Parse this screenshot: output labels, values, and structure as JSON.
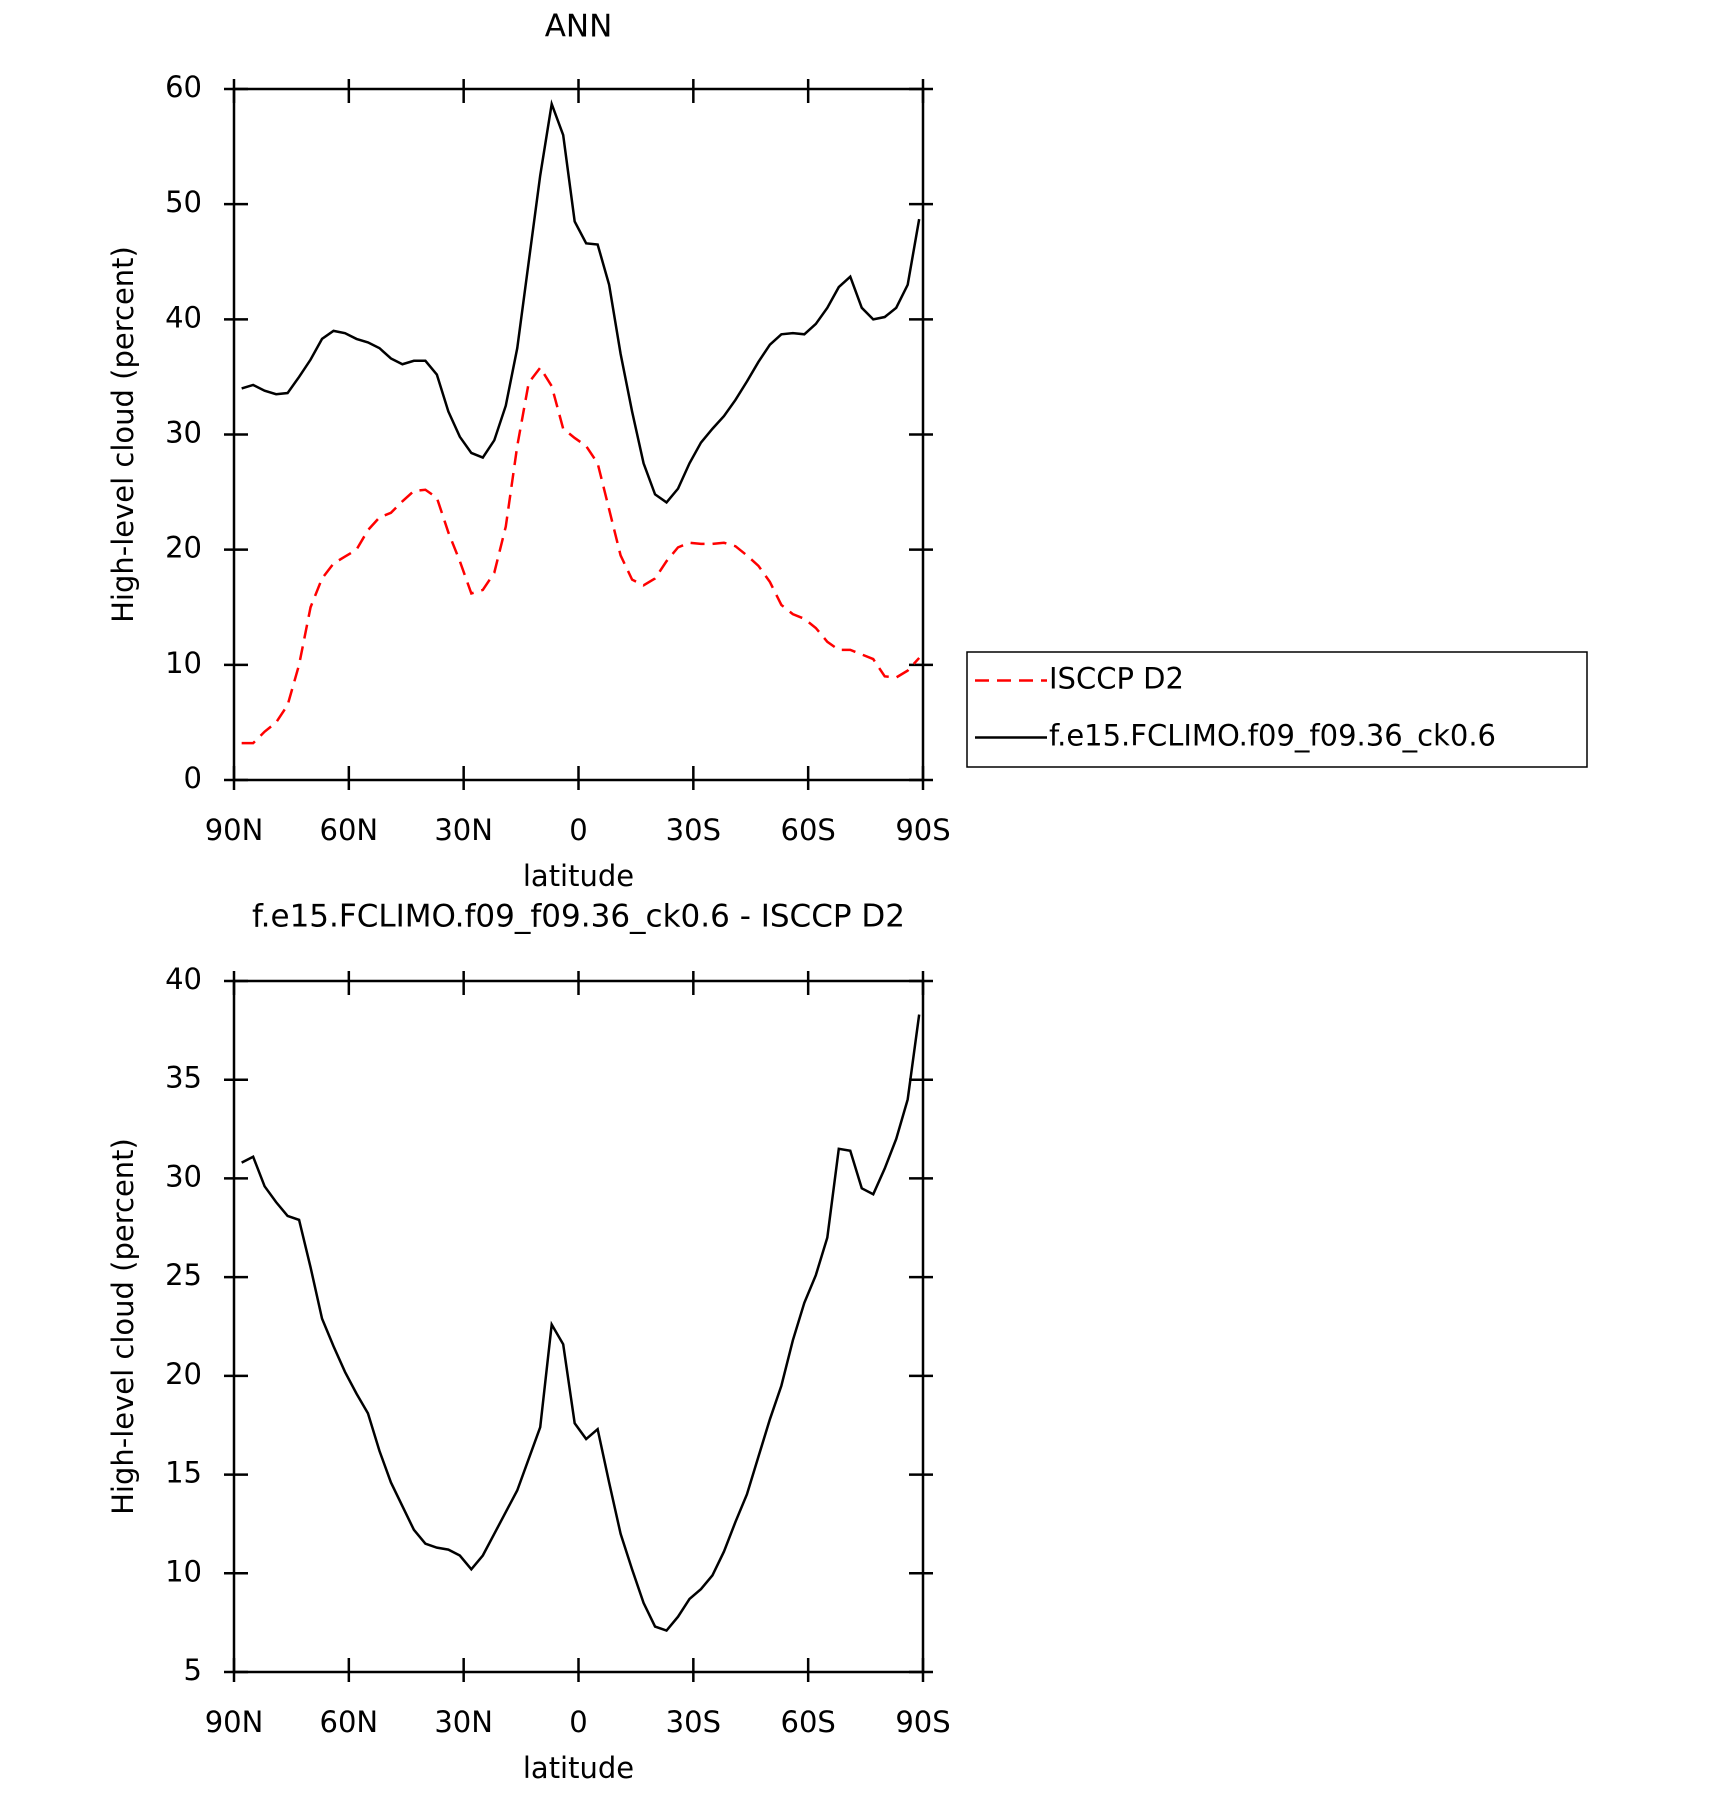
{
  "chart_data": [
    {
      "type": "line",
      "title": "ANN",
      "x_label": "latitude",
      "y_label": "High-level cloud (percent)",
      "x": [
        88,
        85,
        82,
        79,
        76,
        73,
        70,
        67,
        64,
        61,
        58,
        55,
        52,
        49,
        46,
        43,
        40,
        37,
        34,
        31,
        28,
        25,
        22,
        19,
        16,
        13,
        10,
        7,
        4,
        1,
        -2,
        -5,
        -8,
        -11,
        -14,
        -17,
        -20,
        -23,
        -26,
        -29,
        -32,
        -35,
        -38,
        -41,
        -44,
        -47,
        -50,
        -53,
        -56,
        -59,
        -62,
        -65,
        -68,
        -71,
        -74,
        -77,
        -80,
        -83,
        -86,
        -89
      ],
      "series": [
        {
          "name": "ISCCP D2",
          "color": "#ff0000",
          "dashed": true,
          "values": [
            3.2,
            3.2,
            4.2,
            5,
            6.5,
            10,
            15,
            17.5,
            18.8,
            19.4,
            20,
            21.7,
            22.8,
            23.2,
            24.2,
            25.1,
            25.2,
            24.5,
            21.5,
            19,
            16.2,
            16.5,
            18,
            22,
            29,
            34.5,
            35.8,
            34.2,
            30.5,
            29.7,
            29,
            27.5,
            23.5,
            19.5,
            17.4,
            16.9,
            17.5,
            19,
            20.2,
            20.6,
            20.5,
            20.5,
            20.6,
            20.3,
            19.5,
            18.6,
            17.2,
            15.2,
            14.4,
            14,
            13.2,
            12,
            11.3,
            11.3,
            10.9,
            10.5,
            9,
            8.9,
            9.5,
            10.6
          ]
        },
        {
          "name": "f.e15.FCLIMO.f09_f09.36_ck0.6",
          "color": "#000000",
          "dashed": false,
          "values": [
            34,
            34.3,
            33.8,
            33.5,
            33.6,
            35,
            36.5,
            38.3,
            39,
            38.8,
            38.3,
            38,
            37.5,
            36.6,
            36.1,
            36.4,
            36.4,
            35.2,
            32,
            29.8,
            28.4,
            28,
            29.5,
            32.5,
            37.5,
            45,
            52.5,
            58.7,
            56,
            48.5,
            46.6,
            46.5,
            43,
            37,
            32,
            27.5,
            24.8,
            24.1,
            25.3,
            27.5,
            29.3,
            30.5,
            31.6,
            33,
            34.6,
            36.3,
            37.8,
            38.7,
            38.8,
            38.7,
            39.6,
            41,
            42.8,
            43.7,
            41,
            40,
            40.2,
            41,
            43,
            48.7
          ]
        }
      ],
      "xlim": [
        90,
        -90
      ],
      "xticks": [
        {
          "value": 90,
          "label": "90N"
        },
        {
          "value": 60,
          "label": "60N"
        },
        {
          "value": 30,
          "label": "30N"
        },
        0,
        {
          "value": -30,
          "label": "30S"
        },
        {
          "value": -60,
          "label": "60S"
        },
        {
          "value": -90,
          "label": "90S"
        }
      ],
      "ylim": [
        0,
        60
      ],
      "yticks": [
        0,
        10,
        20,
        30,
        40,
        50,
        60
      ],
      "legend": "right"
    },
    {
      "type": "line",
      "title": "f.e15.FCLIMO.f09_f09.36_ck0.6 - ISCCP D2",
      "x_label": "latitude",
      "y_label": "High-level cloud (percent)",
      "x": [
        88,
        85,
        82,
        79,
        76,
        73,
        70,
        67,
        64,
        61,
        58,
        55,
        52,
        49,
        46,
        43,
        40,
        37,
        34,
        31,
        28,
        25,
        22,
        19,
        16,
        13,
        10,
        7,
        4,
        1,
        -2,
        -5,
        -8,
        -11,
        -14,
        -17,
        -20,
        -23,
        -26,
        -29,
        -32,
        -35,
        -38,
        -41,
        -44,
        -47,
        -50,
        -53,
        -56,
        -59,
        -62,
        -65,
        -68,
        -71,
        -74,
        -77,
        -80,
        -83,
        -86,
        -89
      ],
      "series": [
        {
          "color": "#000000",
          "dashed": false,
          "values": [
            30.8,
            31.1,
            29.6,
            28.8,
            28.1,
            27.9,
            25.5,
            22.9,
            21.5,
            20.2,
            19.1,
            18.1,
            16.2,
            14.6,
            13.4,
            12.2,
            11.5,
            11.3,
            11.2,
            10.9,
            10.2,
            10.9,
            12,
            13.1,
            14.2,
            15.8,
            17.4,
            22.6,
            21.6,
            17.6,
            16.8,
            17.3,
            14.6,
            12,
            10.2,
            8.5,
            7.3,
            7.1,
            7.8,
            8.7,
            9.2,
            9.9,
            11.1,
            12.6,
            14,
            15.9,
            17.8,
            19.5,
            21.8,
            23.7,
            25.1,
            27,
            31.5,
            31.4,
            29.5,
            29.2,
            30.5,
            32,
            34,
            38.3
          ]
        }
      ],
      "xlim": [
        90,
        -90
      ],
      "xticks": [
        {
          "value": 90,
          "label": "90N"
        },
        {
          "value": 60,
          "label": "60N"
        },
        {
          "value": 30,
          "label": "30N"
        },
        0,
        {
          "value": -30,
          "label": "30S"
        },
        {
          "value": -60,
          "label": "60S"
        },
        {
          "value": -90,
          "label": "90S"
        }
      ],
      "ylim": [
        5,
        40
      ],
      "yticks": [
        5,
        10,
        15,
        20,
        25,
        30,
        35,
        40
      ]
    }
  ]
}
